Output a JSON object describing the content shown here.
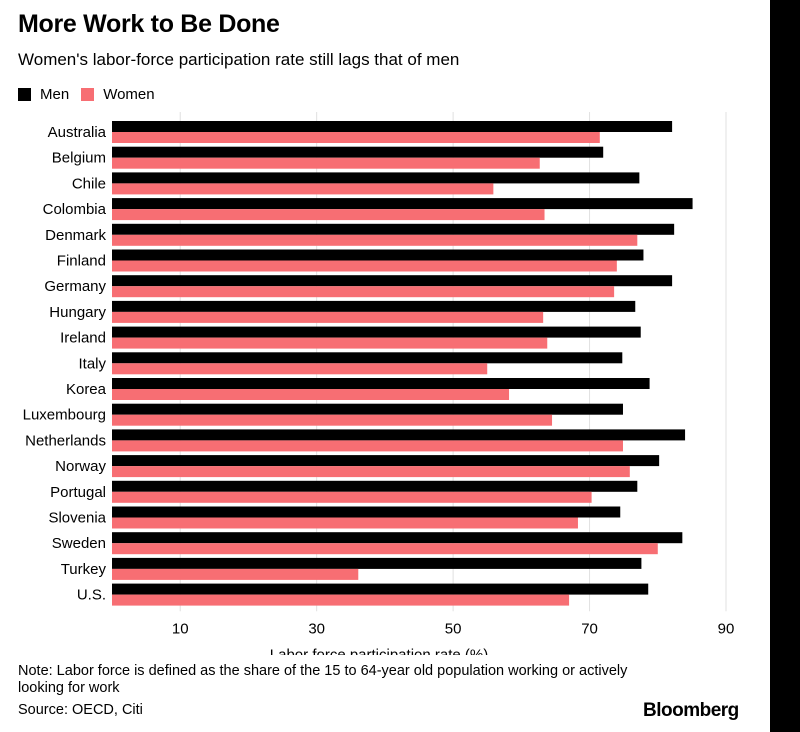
{
  "title": "More Work to Be Done",
  "subtitle": "Women's labor-force participation rate still lags that of men",
  "note": "Note: Labor force is defined as the share of the 15 to 64-year old population working or actively looking for work",
  "source": "Source: OECD, Citi",
  "brand": "Bloomberg",
  "colors": {
    "men": "#000000",
    "women": "#f76e73",
    "grid": "#e0e0e0"
  },
  "chart_data": {
    "type": "bar",
    "orientation": "horizontal",
    "categories": [
      "Australia",
      "Belgium",
      "Chile",
      "Colombia",
      "Denmark",
      "Finland",
      "Germany",
      "Hungary",
      "Ireland",
      "Italy",
      "Korea",
      "Luxembourg",
      "Netherlands",
      "Norway",
      "Portugal",
      "Slovenia",
      "Sweden",
      "Turkey",
      "U.S."
    ],
    "series": [
      {
        "name": "Men",
        "values": [
          82.1,
          72.0,
          77.3,
          85.1,
          82.4,
          77.9,
          82.1,
          76.7,
          77.5,
          74.8,
          78.8,
          74.9,
          84.0,
          80.2,
          77.0,
          74.5,
          83.6,
          77.6,
          78.6
        ]
      },
      {
        "name": "Women",
        "values": [
          71.5,
          62.7,
          55.9,
          63.4,
          77.0,
          74.0,
          73.6,
          63.2,
          63.8,
          55.0,
          58.2,
          64.5,
          74.9,
          75.9,
          70.3,
          68.3,
          80.0,
          36.1,
          67.0
        ]
      }
    ],
    "xlabel": "Labor force participation rate (%)",
    "ylabel": "",
    "xlim": [
      0,
      90
    ],
    "xticks": [
      10,
      30,
      50,
      70,
      90
    ],
    "grid": true,
    "legend": "top-left"
  }
}
